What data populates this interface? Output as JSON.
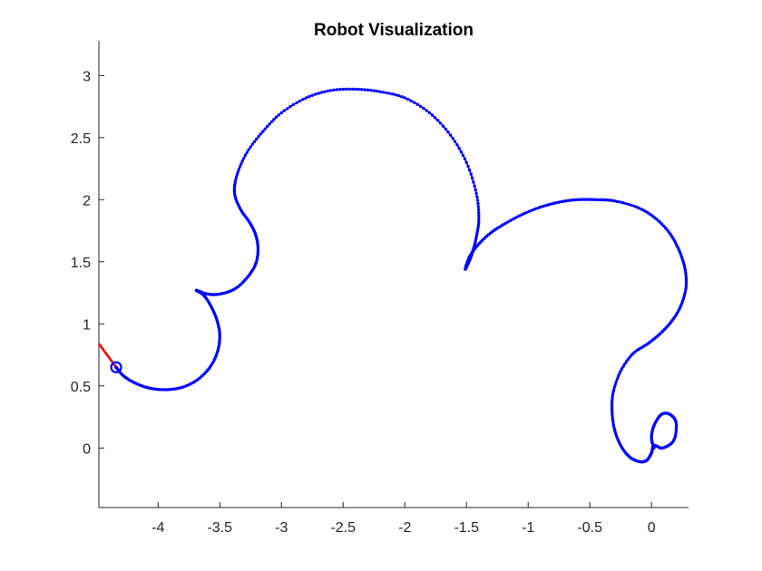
{
  "chart_data": {
    "type": "line",
    "title": "Robot Visualization",
    "xlabel": "",
    "ylabel": "",
    "xlim": [
      -4.48,
      0.3
    ],
    "ylim": [
      -0.48,
      3.28
    ],
    "xticks": [
      -4,
      -3.5,
      -3,
      -2.5,
      -2,
      -1.5,
      -1,
      -0.5,
      0
    ],
    "xtick_labels": [
      "-4",
      "-3.5",
      "-3",
      "-2.5",
      "-2",
      "-1.5",
      "-1",
      "-0.5",
      "0"
    ],
    "yticks": [
      0,
      0.5,
      1,
      1.5,
      2,
      2.5,
      3
    ],
    "ytick_labels": [
      "0",
      "0.5",
      "1",
      "1.5",
      "2",
      "2.5",
      "3"
    ],
    "grid": false,
    "colors": {
      "path": "#0000ff",
      "heading": "#ff0000",
      "axes": "#262626"
    },
    "series": [
      {
        "marker": "point",
        "points": [
          [
            0.02,
            0.0
          ],
          [
            0.0,
            0.08
          ],
          [
            0.02,
            0.18
          ],
          [
            0.08,
            0.27
          ],
          [
            0.15,
            0.27
          ],
          [
            0.2,
            0.2
          ],
          [
            0.18,
            0.06
          ],
          [
            0.09,
            0.0
          ],
          [
            0.02,
            0.02
          ],
          [
            0.0,
            -0.04
          ],
          [
            -0.04,
            -0.1
          ],
          [
            -0.1,
            -0.11
          ],
          [
            -0.18,
            -0.07
          ],
          [
            -0.25,
            0.02
          ],
          [
            -0.3,
            0.15
          ],
          [
            -0.32,
            0.3
          ],
          [
            -0.31,
            0.45
          ],
          [
            -0.25,
            0.62
          ],
          [
            -0.15,
            0.76
          ],
          [
            -0.03,
            0.84
          ],
          [
            0.08,
            0.93
          ],
          [
            0.17,
            1.03
          ],
          [
            0.24,
            1.15
          ],
          [
            0.28,
            1.3
          ],
          [
            0.27,
            1.45
          ],
          [
            0.22,
            1.6
          ],
          [
            0.14,
            1.74
          ],
          [
            0.02,
            1.86
          ],
          [
            -0.12,
            1.94
          ],
          [
            -0.3,
            1.99
          ],
          [
            -0.45,
            2.0
          ],
          [
            -0.6,
            2.0
          ],
          [
            -0.75,
            1.98
          ],
          [
            -0.9,
            1.94
          ],
          [
            -1.05,
            1.88
          ],
          [
            -1.2,
            1.8
          ],
          [
            -1.32,
            1.72
          ],
          [
            -1.42,
            1.62
          ],
          [
            -1.48,
            1.53
          ],
          [
            -1.51,
            1.44
          ],
          [
            -1.48,
            1.5
          ],
          [
            -1.45,
            1.58
          ],
          [
            -1.42,
            1.7
          ],
          [
            -1.4,
            1.85
          ],
          [
            -1.42,
            2.05
          ],
          [
            -1.5,
            2.3
          ],
          [
            -1.63,
            2.52
          ],
          [
            -1.8,
            2.7
          ],
          [
            -2.0,
            2.82
          ],
          [
            -2.2,
            2.87
          ],
          [
            -2.4,
            2.89
          ],
          [
            -2.6,
            2.88
          ],
          [
            -2.8,
            2.82
          ],
          [
            -3.0,
            2.7
          ],
          [
            -3.15,
            2.55
          ],
          [
            -3.28,
            2.38
          ],
          [
            -3.36,
            2.2
          ],
          [
            -3.38,
            2.05
          ],
          [
            -3.33,
            1.92
          ],
          [
            -3.26,
            1.82
          ],
          [
            -3.21,
            1.72
          ],
          [
            -3.19,
            1.6
          ],
          [
            -3.21,
            1.48
          ],
          [
            -3.28,
            1.37
          ],
          [
            -3.38,
            1.28
          ],
          [
            -3.5,
            1.24
          ],
          [
            -3.6,
            1.24
          ],
          [
            -3.69,
            1.27
          ],
          [
            -3.63,
            1.23
          ],
          [
            -3.57,
            1.14
          ],
          [
            -3.52,
            1.02
          ],
          [
            -3.5,
            0.9
          ],
          [
            -3.52,
            0.77
          ],
          [
            -3.58,
            0.65
          ],
          [
            -3.68,
            0.55
          ],
          [
            -3.8,
            0.49
          ],
          [
            -3.93,
            0.47
          ],
          [
            -4.06,
            0.48
          ],
          [
            -4.18,
            0.52
          ],
          [
            -4.28,
            0.58
          ],
          [
            -4.34,
            0.65
          ]
        ]
      }
    ],
    "robot": {
      "position": [
        -4.34,
        0.65
      ],
      "heading_end": [
        -4.48,
        0.84
      ]
    }
  }
}
